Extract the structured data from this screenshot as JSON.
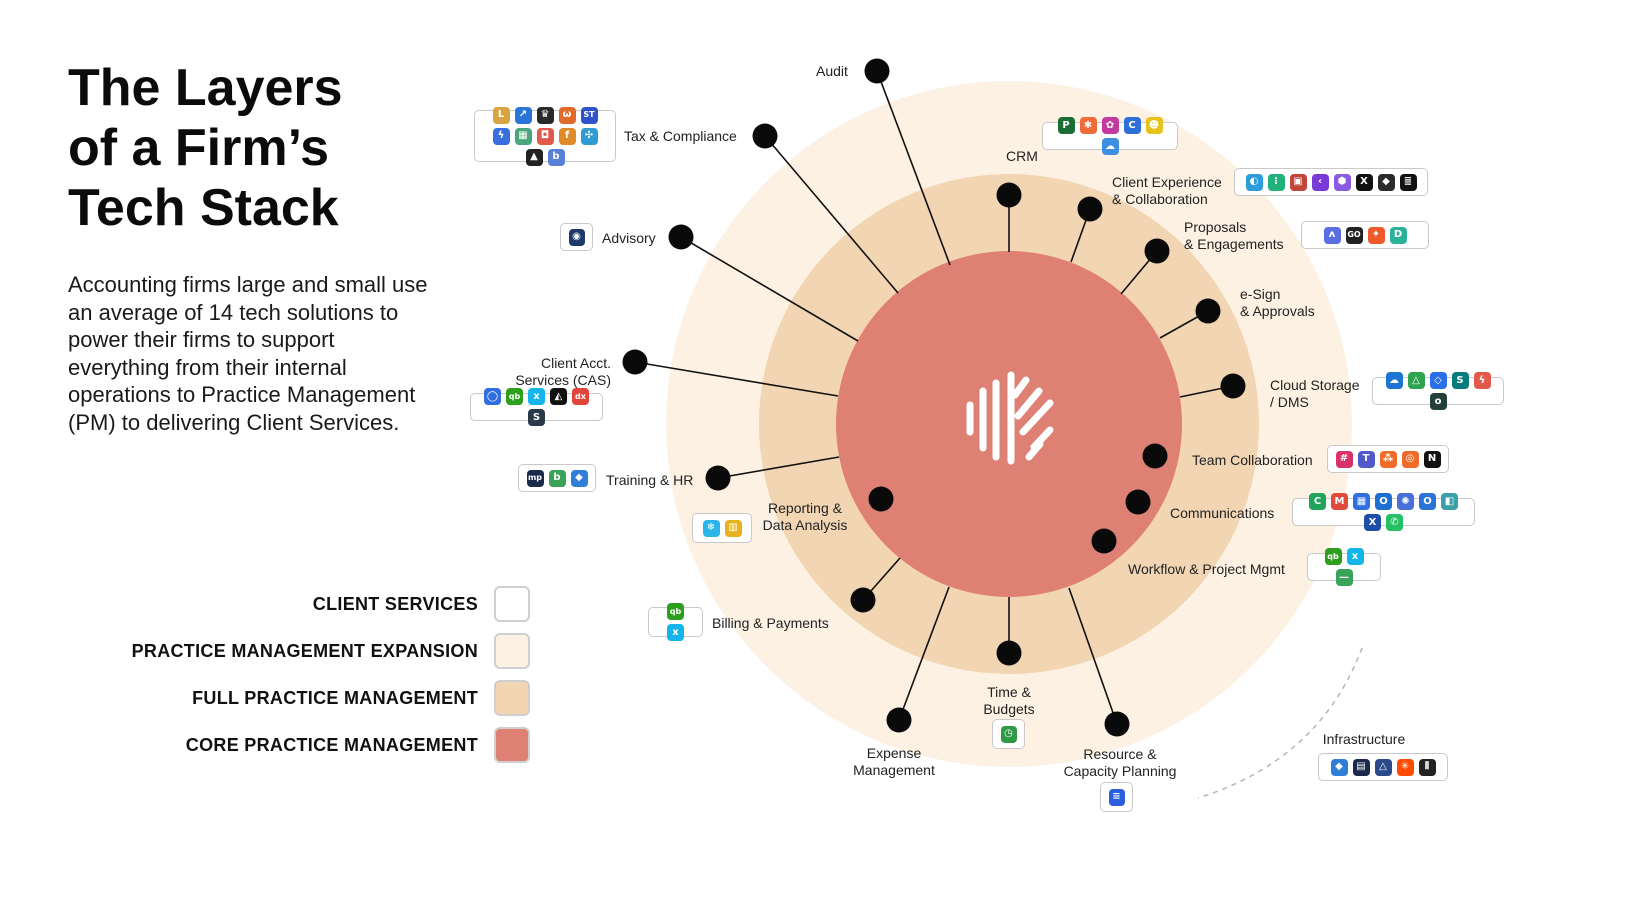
{
  "title": {
    "line1": "The Layers",
    "line2": "of a Firm’s",
    "line3": "Tech Stack"
  },
  "description": "Accounting firms large and small use an average of 14 tech solutions to power their firms to support everything from their internal operations to Practice Management (PM) to delivering Client Services.",
  "colors": {
    "client_services": "#ffffff",
    "pm_expansion": "#fdf1e3",
    "full_pm": "#f2d5b3",
    "core_pm": "#df8074",
    "dot": "#0a0a0a",
    "line": "#111111"
  },
  "legend": [
    {
      "label": "CLIENT SERVICES",
      "color": "#ffffff"
    },
    {
      "label": "PRACTICE MANAGEMENT EXPANSION",
      "color": "#fdf1e3"
    },
    {
      "label": "FULL PRACTICE MANAGEMENT",
      "color": "#f2d5b3"
    },
    {
      "label": "CORE PRACTICE MANAGEMENT",
      "color": "#df8074"
    }
  ],
  "center_logo": "karbon-logo-icon",
  "categories": [
    {
      "id": "audit",
      "lines": [
        "Audit"
      ],
      "icons": []
    },
    {
      "id": "tax-compliance",
      "lines": [
        "Tax & Compliance"
      ],
      "icons": [
        {
          "name": "lacerte-icon",
          "glyph": "L",
          "color": "#d9a441"
        },
        {
          "name": "taxact-icon",
          "glyph": "↗",
          "color": "#2b74d8"
        },
        {
          "name": "hmrc-crest-icon",
          "glyph": "♛",
          "color": "#2a2a2a"
        },
        {
          "name": "owl-icon",
          "glyph": "ω",
          "color": "#e06a2a"
        },
        {
          "name": "st-icon",
          "glyph": "ST",
          "color": "#2f54c9"
        },
        {
          "name": "bolt-icon",
          "glyph": "ϟ",
          "color": "#3a6fe0"
        },
        {
          "name": "grid-icon",
          "glyph": "▦",
          "color": "#4aa57a"
        },
        {
          "name": "shield-icon",
          "glyph": "◘",
          "color": "#e0594a"
        },
        {
          "name": "script-f-icon",
          "glyph": "f",
          "color": "#e08a2a"
        },
        {
          "name": "pinwheel-icon",
          "glyph": "✣",
          "color": "#2f9bd2"
        },
        {
          "name": "dark-square-icon",
          "glyph": "▲",
          "color": "#222222"
        },
        {
          "name": "badge-icon",
          "glyph": "b",
          "color": "#5a7fd8"
        }
      ]
    },
    {
      "id": "crm",
      "lines": [
        "CRM"
      ],
      "icons": [
        {
          "name": "pipedrive-icon",
          "glyph": "P",
          "color": "#1a6e35"
        },
        {
          "name": "hubspot-icon",
          "glyph": "✱",
          "color": "#ef6b3a"
        },
        {
          "name": "flower-icon",
          "glyph": "✿",
          "color": "#c23a9e"
        },
        {
          "name": "circle-c-icon",
          "glyph": "C",
          "color": "#2f6fd8"
        },
        {
          "name": "mailchimp-icon",
          "glyph": "☻",
          "color": "#e8c21c"
        },
        {
          "name": "cloud-icon",
          "glyph": "☁",
          "color": "#3d8fe0"
        }
      ]
    },
    {
      "id": "client-experience",
      "lines": [
        "Client Experience",
        "& Collaboration"
      ],
      "icons": [
        {
          "name": "toggle-icon",
          "glyph": "◐",
          "color": "#2d9cdb"
        },
        {
          "name": "dots-icon",
          "glyph": "⁝",
          "color": "#20b27a"
        },
        {
          "name": "frame-icon",
          "glyph": "▣",
          "color": "#c2453a"
        },
        {
          "name": "chevron-icon",
          "glyph": "‹",
          "color": "#7a3ad8"
        },
        {
          "name": "hexagon-icon",
          "glyph": "⬢",
          "color": "#8a5ae0"
        },
        {
          "name": "x-circle-icon",
          "glyph": "X",
          "color": "#111111"
        },
        {
          "name": "diamond-icon",
          "glyph": "◆",
          "color": "#2b2b2b"
        },
        {
          "name": "stack-icon",
          "glyph": "≣",
          "color": "#111111"
        }
      ]
    },
    {
      "id": "proposals",
      "lines": [
        "Proposals",
        "& Engagements"
      ],
      "icons": [
        {
          "name": "ignition-icon",
          "glyph": "ʌ",
          "color": "#5a6ee0"
        },
        {
          "name": "go-icon",
          "glyph": "GO",
          "color": "#222222"
        },
        {
          "name": "spark-icon",
          "glyph": "✦",
          "color": "#ef5a2a"
        },
        {
          "name": "d-icon",
          "glyph": "D",
          "color": "#2bb39a"
        }
      ]
    },
    {
      "id": "esign",
      "lines": [
        "e-Sign",
        "& Approvals"
      ],
      "icons": []
    },
    {
      "id": "cloud-storage",
      "lines": [
        "Cloud Storage",
        "/ DMS"
      ],
      "icons": [
        {
          "name": "onedrive-icon",
          "glyph": "☁",
          "color": "#1e74d2"
        },
        {
          "name": "google-drive-icon",
          "glyph": "△",
          "color": "#2fa44f"
        },
        {
          "name": "dropbox-icon",
          "glyph": "◇",
          "color": "#2a6fe8"
        },
        {
          "name": "sharepoint-icon",
          "glyph": "S",
          "color": "#087c7c"
        },
        {
          "name": "flash-icon",
          "glyph": "ϟ",
          "color": "#e0594a"
        },
        {
          "name": "dark-o-icon",
          "glyph": "o",
          "color": "#24403b"
        }
      ]
    },
    {
      "id": "team-collab",
      "lines": [
        "Team Collaboration"
      ],
      "icons": [
        {
          "name": "slack-icon",
          "glyph": "#",
          "color": "#d8326a"
        },
        {
          "name": "teams-icon",
          "glyph": "T",
          "color": "#5059c9"
        },
        {
          "name": "orange-square-icon",
          "glyph": "⁂",
          "color": "#ef6b2a"
        },
        {
          "name": "ring-icon",
          "glyph": "◎",
          "color": "#ef6b2a"
        },
        {
          "name": "notion-icon",
          "glyph": "N",
          "color": "#111111"
        }
      ]
    },
    {
      "id": "communications",
      "lines": [
        "Communications"
      ],
      "icons": [
        {
          "name": "green-c-icon",
          "glyph": "C",
          "color": "#21a35a"
        },
        {
          "name": "gmail-icon",
          "glyph": "M",
          "color": "#e04a3a"
        },
        {
          "name": "calendar-icon",
          "glyph": "▦",
          "color": "#2f6fe0"
        },
        {
          "name": "outlook-icon",
          "glyph": "O",
          "color": "#1e6fd2"
        },
        {
          "name": "aperture-icon",
          "glyph": "✺",
          "color": "#4a6fd8"
        },
        {
          "name": "mail-o-icon",
          "glyph": "O",
          "color": "#2a74d8"
        },
        {
          "name": "teal-square-icon",
          "glyph": "◧",
          "color": "#3aa0a8"
        },
        {
          "name": "exchange-icon",
          "glyph": "X",
          "color": "#1e4fa8"
        },
        {
          "name": "whatsapp-icon",
          "glyph": "✆",
          "color": "#25c065"
        }
      ]
    },
    {
      "id": "workflow",
      "lines": [
        "Workflow & Project Mgmt"
      ],
      "icons": [
        {
          "name": "quickbooks-icon",
          "glyph": "qb",
          "color": "#2ca01c"
        },
        {
          "name": "xero-icon",
          "glyph": "x",
          "color": "#13b5ea"
        },
        {
          "name": "green-app-icon",
          "glyph": "—",
          "color": "#3aa35a"
        }
      ]
    },
    {
      "id": "resource",
      "lines": [
        "Resource &",
        "Capacity Planning"
      ],
      "icons": [
        {
          "name": "float-icon",
          "glyph": "≡",
          "color": "#2b5fe0"
        }
      ]
    },
    {
      "id": "time",
      "lines": [
        "Time &",
        "Budgets"
      ],
      "icons": [
        {
          "name": "clock-icon",
          "glyph": "◷",
          "color": "#2e9a46"
        }
      ]
    },
    {
      "id": "expense",
      "lines": [
        "Expense",
        "Management"
      ],
      "icons": []
    },
    {
      "id": "billing",
      "lines": [
        "Billing & Payments"
      ],
      "icons": [
        {
          "name": "quickbooks-icon",
          "glyph": "qb",
          "color": "#2ca01c"
        },
        {
          "name": "xero-icon",
          "glyph": "x",
          "color": "#13b5ea"
        }
      ]
    },
    {
      "id": "reporting",
      "lines": [
        "Reporting &",
        "Data Analysis"
      ],
      "icons": [
        {
          "name": "snowflake-icon",
          "glyph": "❄",
          "color": "#29b5e8"
        },
        {
          "name": "power-bi-icon",
          "glyph": "▥",
          "color": "#e8b21c"
        }
      ]
    },
    {
      "id": "training",
      "lines": [
        "Training & HR"
      ],
      "icons": [
        {
          "name": "mp-icon",
          "glyph": "mp",
          "color": "#1b2a4a"
        },
        {
          "name": "b-icon",
          "glyph": "b",
          "color": "#3aa35a"
        },
        {
          "name": "azure-icon",
          "glyph": "◆",
          "color": "#2f7fd8"
        }
      ]
    },
    {
      "id": "cas",
      "lines": [
        "Client Acct.",
        "Services (CAS)"
      ],
      "icons": [
        {
          "name": "q-ring-icon",
          "glyph": "◯",
          "color": "#2f6fe0"
        },
        {
          "name": "quickbooks-icon",
          "glyph": "qb",
          "color": "#2ca01c"
        },
        {
          "name": "xero-icon",
          "glyph": "x",
          "color": "#13b5ea"
        },
        {
          "name": "triangle-icon",
          "glyph": "◭",
          "color": "#111111"
        },
        {
          "name": "dext-icon",
          "glyph": "dx",
          "color": "#e0473a"
        },
        {
          "name": "s-icon",
          "glyph": "S",
          "color": "#2a3a4a"
        }
      ]
    },
    {
      "id": "advisory",
      "lines": [
        "Advisory"
      ],
      "icons": [
        {
          "name": "orbit-icon",
          "glyph": "◉",
          "color": "#1e3a6a"
        }
      ]
    },
    {
      "id": "infrastructure",
      "lines": [
        "Infrastructure"
      ],
      "icons": [
        {
          "name": "azure-icon",
          "glyph": "◆",
          "color": "#2f7fd8"
        },
        {
          "name": "framed-icon",
          "glyph": "▤",
          "color": "#1b2a4a"
        },
        {
          "name": "pyramid-icon",
          "glyph": "△",
          "color": "#2a4a8a"
        },
        {
          "name": "zapier-icon",
          "glyph": "✳",
          "color": "#ff4a00"
        },
        {
          "name": "karbon-small-icon",
          "glyph": "⫴",
          "color": "#222222"
        }
      ]
    }
  ]
}
